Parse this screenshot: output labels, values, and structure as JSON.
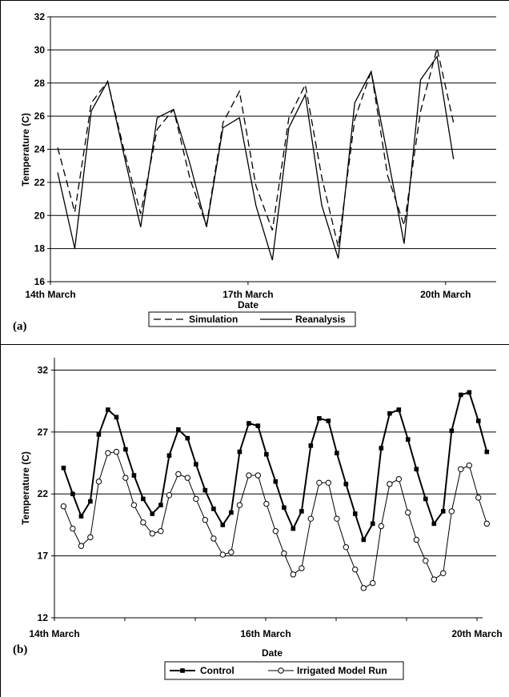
{
  "chart_data": [
    {
      "type": "line",
      "panel_label": "(a)",
      "xlabel": "Date",
      "ylabel": "Temperature (C)",
      "ylim": [
        16,
        32
      ],
      "yticks": [
        "16",
        "18",
        "20",
        "22",
        "24",
        "26",
        "28",
        "30",
        "32"
      ],
      "xlim": [
        0,
        6.5
      ],
      "xticks": [
        {
          "x": 0,
          "label": "14th March"
        },
        {
          "x": 3,
          "label": "17th March"
        },
        {
          "x": 6,
          "label": "20th March"
        }
      ],
      "grid": true,
      "legend_placement": "bottom",
      "series": [
        {
          "name": "Simulation",
          "style": "dashed",
          "x": [
            0.11,
            0.37,
            0.62,
            0.87,
            1.12,
            1.37,
            1.62,
            1.87,
            2.12,
            2.37,
            2.62,
            2.87,
            3.12,
            3.37,
            3.62,
            3.87,
            4.12,
            4.37,
            4.62,
            4.87,
            5.12,
            5.37,
            5.62,
            5.87,
            6.12
          ],
          "y": [
            24.1,
            20.2,
            26.8,
            28.1,
            23.9,
            20.1,
            25.2,
            26.4,
            22.2,
            19.4,
            25.6,
            27.5,
            21.8,
            19.1,
            25.9,
            27.9,
            22.3,
            18.1,
            25.8,
            28.7,
            22.4,
            19.4,
            26.3,
            30.1,
            25.6
          ]
        },
        {
          "name": "Reanalysis",
          "style": "solid",
          "x": [
            0.11,
            0.37,
            0.62,
            0.87,
            1.12,
            1.37,
            1.62,
            1.87,
            2.12,
            2.37,
            2.62,
            2.87,
            3.12,
            3.37,
            3.62,
            3.87,
            4.12,
            4.37,
            4.62,
            4.87,
            5.12,
            5.37,
            5.62,
            5.87,
            6.12
          ],
          "y": [
            22.6,
            18.0,
            26.3,
            28.1,
            23.6,
            19.3,
            25.9,
            26.4,
            23.1,
            19.3,
            25.3,
            25.9,
            20.6,
            17.3,
            25.3,
            27.3,
            20.6,
            17.4,
            26.8,
            28.7,
            23.6,
            18.3,
            28.2,
            29.6,
            23.4
          ]
        }
      ]
    },
    {
      "type": "line",
      "panel_label": "(b)",
      "xlabel": "Date",
      "ylabel": "Temperature (C)",
      "ylim": [
        12,
        33
      ],
      "yticks": [
        "12",
        "17",
        "22",
        "27",
        "32"
      ],
      "xlim": [
        0,
        6.2
      ],
      "xticks": [
        {
          "x": 0,
          "label": "14th March"
        },
        {
          "x": 3,
          "label": "16th March"
        },
        {
          "x": 6,
          "label": "20th March"
        }
      ],
      "grid": true,
      "legend_placement": "bottom",
      "series": [
        {
          "name": "Control",
          "marker": "square",
          "x": [
            0.13,
            0.26,
            0.38,
            0.51,
            0.63,
            0.76,
            0.88,
            1.01,
            1.13,
            1.26,
            1.39,
            1.51,
            1.63,
            1.76,
            1.89,
            2.01,
            2.14,
            2.26,
            2.39,
            2.51,
            2.63,
            2.76,
            2.89,
            3.01,
            3.14,
            3.26,
            3.39,
            3.51,
            3.64,
            3.76,
            3.89,
            4.01,
            4.14,
            4.27,
            4.39,
            4.52,
            4.64,
            4.76,
            4.89,
            5.02,
            5.14,
            5.27,
            5.39,
            5.52,
            5.64,
            5.77,
            5.89,
            6.02
          ],
          "y": [
            24.1,
            22.0,
            20.2,
            21.4,
            26.8,
            28.8,
            28.2,
            25.6,
            23.5,
            21.6,
            20.4,
            21.1,
            25.1,
            27.2,
            26.5,
            24.4,
            22.3,
            20.8,
            19.5,
            20.5,
            25.4,
            27.7,
            27.5,
            25.2,
            23.0,
            20.9,
            19.2,
            20.6,
            25.9,
            28.1,
            27.9,
            25.3,
            22.8,
            20.4,
            18.3,
            19.6,
            25.7,
            28.5,
            28.8,
            26.4,
            24.0,
            21.6,
            19.6,
            20.6,
            27.1,
            30.0,
            30.2,
            27.9
          ],
          "y_extra": 25.4
        },
        {
          "name": "Irrigated Model Run",
          "marker": "circle",
          "x": [
            0.13,
            0.26,
            0.38,
            0.51,
            0.63,
            0.76,
            0.88,
            1.01,
            1.13,
            1.26,
            1.39,
            1.51,
            1.63,
            1.76,
            1.89,
            2.01,
            2.14,
            2.26,
            2.39,
            2.51,
            2.63,
            2.76,
            2.89,
            3.01,
            3.14,
            3.26,
            3.39,
            3.51,
            3.64,
            3.76,
            3.89,
            4.01,
            4.14,
            4.27,
            4.39,
            4.52,
            4.64,
            4.76,
            4.89,
            5.02,
            5.14,
            5.27,
            5.39,
            5.52,
            5.64,
            5.77,
            5.89,
            6.02,
            6.14
          ],
          "y": [
            21.0,
            19.2,
            17.8,
            18.5,
            23.0,
            25.3,
            25.4,
            23.3,
            21.1,
            19.7,
            18.8,
            19.0,
            21.9,
            23.6,
            23.3,
            21.6,
            19.9,
            18.4,
            17.1,
            17.3,
            21.1,
            23.5,
            23.5,
            21.2,
            19.0,
            17.2,
            15.5,
            16.0,
            20.0,
            22.9,
            22.9,
            20.0,
            17.7,
            15.9,
            14.4,
            14.8,
            19.4,
            22.8,
            23.2,
            20.5,
            18.3,
            16.6,
            15.1,
            15.6,
            20.6,
            24.0,
            24.3,
            21.7,
            19.6
          ]
        }
      ]
    }
  ]
}
